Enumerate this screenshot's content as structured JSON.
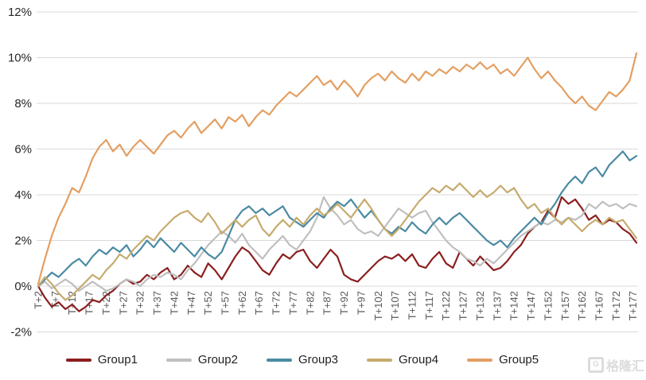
{
  "chart_data": {
    "type": "line",
    "title": "",
    "xlabel": "",
    "ylabel": "",
    "ylim": [
      -2,
      12
    ],
    "grid": "horizontal",
    "grid_color": "#d9d9d9",
    "background_color": "#ffffff",
    "legend_position": "bottom",
    "y_ticks": {
      "values": [
        -2,
        0,
        2,
        4,
        6,
        8,
        10,
        12
      ],
      "labels": [
        "-2%",
        "0%",
        "2%",
        "4%",
        "6%",
        "8%",
        "10%",
        "12%"
      ]
    },
    "x_tick_values": [
      2,
      7,
      12,
      17,
      22,
      27,
      32,
      37,
      42,
      47,
      52,
      57,
      62,
      67,
      72,
      77,
      82,
      87,
      92,
      97,
      102,
      107,
      112,
      117,
      122,
      127,
      132,
      137,
      142,
      147,
      152,
      157,
      162,
      167,
      172,
      177
    ],
    "x_tick_labels": [
      "T+2",
      "T+7",
      "T+12",
      "T+17",
      "T+22",
      "T+27",
      "T+32",
      "T+37",
      "T+42",
      "T+47",
      "T+52",
      "T+57",
      "T+62",
      "T+67",
      "T+72",
      "T+77",
      "T+82",
      "T+87",
      "T+92",
      "T+97",
      "T+102",
      "T+107",
      "T+112",
      "T+117",
      "T+122",
      "T+127",
      "T+132",
      "T+137",
      "T+142",
      "T+147",
      "T+152",
      "T+157",
      "T+162",
      "T+167",
      "T+172",
      "T+177"
    ],
    "x": [
      2,
      4,
      6,
      8,
      10,
      12,
      14,
      16,
      18,
      20,
      22,
      24,
      26,
      28,
      30,
      32,
      34,
      36,
      38,
      40,
      42,
      44,
      46,
      48,
      50,
      52,
      54,
      56,
      58,
      60,
      62,
      64,
      66,
      68,
      70,
      72,
      74,
      76,
      78,
      80,
      82,
      84,
      86,
      88,
      90,
      92,
      94,
      96,
      98,
      100,
      102,
      104,
      106,
      108,
      110,
      112,
      114,
      116,
      118,
      120,
      122,
      124,
      126,
      128,
      130,
      132,
      134,
      136,
      138,
      140,
      142,
      144,
      146,
      148,
      150,
      152,
      154,
      156,
      158,
      160,
      162,
      164,
      166,
      168,
      170,
      172,
      174,
      176,
      178
    ],
    "series": [
      {
        "name": "Group1",
        "color": "#8B1F1F",
        "values": [
          0.0,
          -0.5,
          -0.9,
          -0.7,
          -1.0,
          -0.8,
          -1.1,
          -0.9,
          -0.6,
          -0.7,
          -0.4,
          -0.2,
          0.1,
          0.3,
          0.1,
          0.2,
          0.5,
          0.3,
          0.6,
          0.8,
          0.3,
          0.5,
          0.9,
          0.6,
          0.4,
          1.0,
          0.7,
          0.3,
          0.8,
          1.3,
          1.7,
          1.5,
          1.1,
          0.7,
          0.5,
          1.0,
          1.4,
          1.2,
          1.5,
          1.6,
          1.1,
          0.8,
          1.2,
          1.6,
          1.3,
          0.5,
          0.3,
          0.2,
          0.5,
          0.8,
          1.1,
          1.3,
          1.2,
          1.4,
          1.1,
          1.4,
          0.9,
          0.8,
          1.2,
          1.5,
          1.0,
          0.8,
          1.5,
          1.2,
          0.9,
          1.3,
          1.0,
          0.7,
          0.8,
          1.1,
          1.5,
          1.8,
          2.3,
          2.6,
          2.8,
          3.3,
          3.0,
          3.9,
          3.6,
          3.8,
          3.4,
          2.9,
          3.1,
          2.7,
          2.9,
          2.8,
          2.5,
          2.3,
          1.9
        ]
      },
      {
        "name": "Group2",
        "color": "#BFBFBF",
        "values": [
          0.0,
          0.2,
          -0.1,
          0.1,
          0.3,
          0.1,
          -0.2,
          0.0,
          0.2,
          0.0,
          -0.2,
          -0.1,
          0.1,
          0.3,
          0.2,
          0.0,
          0.3,
          0.5,
          0.4,
          0.6,
          0.5,
          0.3,
          0.7,
          1.0,
          1.4,
          1.8,
          2.1,
          2.4,
          2.2,
          1.9,
          2.3,
          1.8,
          1.5,
          1.2,
          1.6,
          1.9,
          2.2,
          1.8,
          1.6,
          2.0,
          2.4,
          3.0,
          3.9,
          3.4,
          3.1,
          2.7,
          2.9,
          2.5,
          2.3,
          2.4,
          2.2,
          2.6,
          3.0,
          3.4,
          3.2,
          3.0,
          3.2,
          3.3,
          2.8,
          2.4,
          2.0,
          1.7,
          1.5,
          1.2,
          1.1,
          0.9,
          1.2,
          1.0,
          1.3,
          1.6,
          1.9,
          2.2,
          2.4,
          2.6,
          2.8,
          2.7,
          2.9,
          2.8,
          3.0,
          2.9,
          3.1,
          3.6,
          3.4,
          3.7,
          3.5,
          3.6,
          3.4,
          3.6,
          3.5
        ]
      },
      {
        "name": "Group3",
        "color": "#4A8AA2",
        "values": [
          0.0,
          0.3,
          0.6,
          0.4,
          0.7,
          1.0,
          1.2,
          0.9,
          1.3,
          1.6,
          1.4,
          1.7,
          1.5,
          1.8,
          1.3,
          1.6,
          2.0,
          1.7,
          2.1,
          1.8,
          1.5,
          1.9,
          1.6,
          1.3,
          1.7,
          1.4,
          1.2,
          1.5,
          2.2,
          2.9,
          3.3,
          3.5,
          3.2,
          3.4,
          3.1,
          3.3,
          3.5,
          3.0,
          2.8,
          2.6,
          2.9,
          3.2,
          3.0,
          3.4,
          3.7,
          3.5,
          3.8,
          3.4,
          3.0,
          3.3,
          2.9,
          2.5,
          2.3,
          2.6,
          2.4,
          2.8,
          2.5,
          2.3,
          2.7,
          3.0,
          2.7,
          3.0,
          3.2,
          2.9,
          2.6,
          2.3,
          2.0,
          1.8,
          2.0,
          1.7,
          2.1,
          2.4,
          2.7,
          3.0,
          2.7,
          3.2,
          3.6,
          4.1,
          4.5,
          4.8,
          4.5,
          5.0,
          5.2,
          4.8,
          5.3,
          5.6,
          5.9,
          5.5,
          5.7
        ]
      },
      {
        "name": "Group4",
        "color": "#C6AB6E",
        "values": [
          0.0,
          0.4,
          0.1,
          -0.3,
          -0.6,
          -0.4,
          -0.1,
          0.2,
          0.5,
          0.3,
          0.7,
          1.0,
          1.4,
          1.2,
          1.6,
          1.9,
          2.2,
          2.0,
          2.4,
          2.7,
          3.0,
          3.2,
          3.3,
          3.0,
          2.8,
          3.2,
          2.8,
          2.3,
          2.6,
          2.9,
          2.6,
          2.9,
          3.1,
          2.5,
          2.2,
          2.6,
          2.9,
          2.6,
          3.0,
          2.7,
          3.1,
          3.4,
          3.1,
          3.3,
          3.6,
          3.3,
          3.0,
          3.4,
          3.8,
          3.4,
          2.9,
          2.5,
          2.2,
          2.5,
          2.9,
          3.3,
          3.7,
          4.0,
          4.3,
          4.1,
          4.4,
          4.2,
          4.5,
          4.2,
          3.9,
          4.2,
          3.9,
          4.1,
          4.4,
          4.1,
          4.3,
          3.8,
          3.4,
          3.6,
          3.2,
          3.4,
          3.0,
          2.7,
          3.0,
          2.7,
          2.4,
          2.7,
          2.9,
          2.7,
          3.0,
          2.8,
          2.9,
          2.5,
          2.1
        ]
      },
      {
        "name": "Group5",
        "color": "#E39F62",
        "values": [
          0.1,
          1.2,
          2.2,
          3.0,
          3.6,
          4.3,
          4.1,
          4.8,
          5.6,
          6.1,
          6.4,
          5.9,
          6.2,
          5.7,
          6.1,
          6.4,
          6.1,
          5.8,
          6.2,
          6.6,
          6.8,
          6.5,
          6.9,
          7.2,
          6.7,
          7.0,
          7.3,
          6.9,
          7.4,
          7.2,
          7.5,
          7.0,
          7.4,
          7.7,
          7.5,
          7.9,
          8.2,
          8.5,
          8.3,
          8.6,
          8.9,
          9.2,
          8.8,
          9.0,
          8.6,
          9.0,
          8.7,
          8.3,
          8.8,
          9.1,
          9.3,
          9.0,
          9.4,
          9.1,
          8.9,
          9.3,
          9.0,
          9.4,
          9.2,
          9.5,
          9.3,
          9.6,
          9.4,
          9.7,
          9.5,
          9.8,
          9.5,
          9.7,
          9.3,
          9.5,
          9.2,
          9.6,
          10.0,
          9.5,
          9.1,
          9.4,
          9.0,
          8.7,
          8.3,
          8.0,
          8.3,
          7.9,
          7.7,
          8.1,
          8.5,
          8.3,
          8.6,
          9.0,
          10.2
        ]
      }
    ]
  },
  "axis_text_color": {
    "y_labels": "#262626",
    "x_labels": "#595959"
  },
  "legend": {
    "labels": [
      "Group1",
      "Group2",
      "Group3",
      "Group4",
      "Group5"
    ]
  },
  "watermark": {
    "logo_letter": "G",
    "text": "格隆汇",
    "color": "#dcdcdc"
  }
}
